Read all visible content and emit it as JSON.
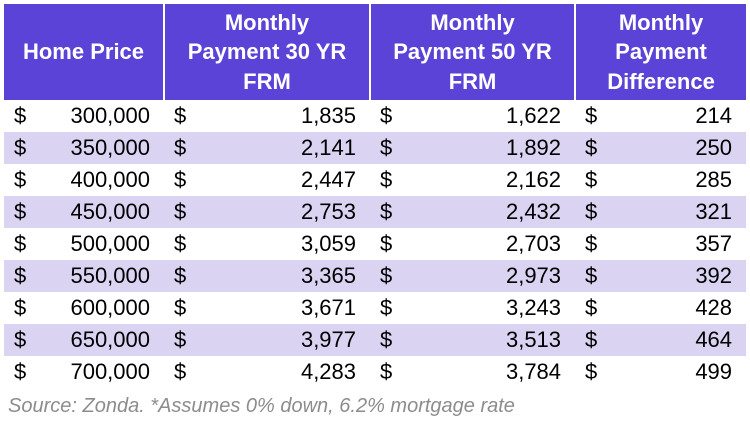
{
  "colors": {
    "header_bg": "#5A43D6",
    "header_text": "#FFFFFF",
    "row_alt_bg": "#DAD4F2",
    "text": "#000000",
    "source_text": "#8C8C8C",
    "page_bg": "#FFFFFF"
  },
  "currency_symbol": "$",
  "table": {
    "headers": [
      "Home Price",
      "Monthly\nPayment 30 YR\nFRM",
      "Monthly\nPayment 50 YR\nFRM",
      "Monthly\nPayment\nDifference"
    ],
    "rows": [
      {
        "home_price": "300,000",
        "payment_30yr": "1,835",
        "payment_50yr": "1,622",
        "difference": "214"
      },
      {
        "home_price": "350,000",
        "payment_30yr": "2,141",
        "payment_50yr": "1,892",
        "difference": "250"
      },
      {
        "home_price": "400,000",
        "payment_30yr": "2,447",
        "payment_50yr": "2,162",
        "difference": "285"
      },
      {
        "home_price": "450,000",
        "payment_30yr": "2,753",
        "payment_50yr": "2,432",
        "difference": "321"
      },
      {
        "home_price": "500,000",
        "payment_30yr": "3,059",
        "payment_50yr": "2,703",
        "difference": "357"
      },
      {
        "home_price": "550,000",
        "payment_30yr": "3,365",
        "payment_50yr": "2,973",
        "difference": "392"
      },
      {
        "home_price": "600,000",
        "payment_30yr": "3,671",
        "payment_50yr": "3,243",
        "difference": "428"
      },
      {
        "home_price": "650,000",
        "payment_30yr": "3,977",
        "payment_50yr": "3,513",
        "difference": "464"
      },
      {
        "home_price": "700,000",
        "payment_30yr": "4,283",
        "payment_50yr": "3,784",
        "difference": "499"
      }
    ]
  },
  "source_note": "Source: Zonda. *Assumes 0% down, 6.2% mortgage rate",
  "chart_data": {
    "type": "table",
    "columns": [
      "Home Price",
      "Monthly Payment 30 YR FRM",
      "Monthly Payment 50 YR FRM",
      "Monthly Payment Difference"
    ],
    "rows": [
      [
        300000,
        1835,
        1622,
        214
      ],
      [
        350000,
        2141,
        1892,
        250
      ],
      [
        400000,
        2447,
        2162,
        285
      ],
      [
        450000,
        2753,
        2432,
        321
      ],
      [
        500000,
        3059,
        2703,
        357
      ],
      [
        550000,
        3365,
        2973,
        392
      ],
      [
        600000,
        3671,
        3243,
        428
      ],
      [
        650000,
        3977,
        3513,
        464
      ],
      [
        700000,
        4283,
        3784,
        499
      ]
    ],
    "units": "USD",
    "notes": "Source: Zonda. *Assumes 0% down, 6.2% mortgage rate"
  }
}
